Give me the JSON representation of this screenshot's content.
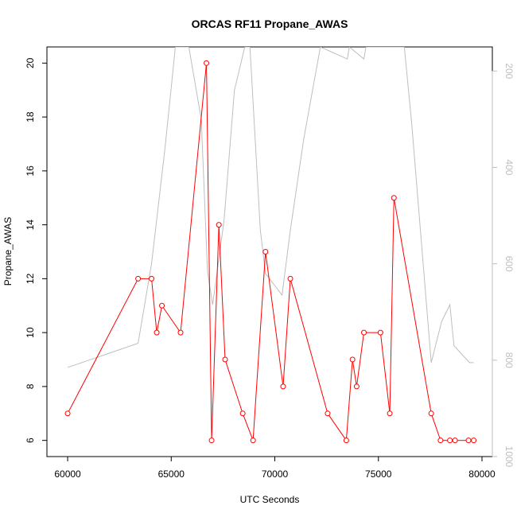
{
  "chart_data": {
    "type": "line",
    "title": "ORCAS RF11 Propane_AWAS",
    "xlabel": "UTC Seconds",
    "ylabel": "Propane_AWAS",
    "xlim": [
      59000,
      80500
    ],
    "ylim": [
      5.4,
      20.6
    ],
    "y2lim": [
      1000,
      150
    ],
    "xticks": [
      60000,
      65000,
      70000,
      75000,
      80000
    ],
    "yticks": [
      6,
      8,
      10,
      12,
      14,
      16,
      18,
      20
    ],
    "y2ticks": [
      200,
      400,
      600,
      800,
      1000
    ],
    "grid": false,
    "series": [
      {
        "axis": "left",
        "color": "#ff0000",
        "marker": "open-circle",
        "x": [
          60000,
          63400,
          64050,
          64300,
          64550,
          65450,
          66700,
          66950,
          67300,
          67600,
          68450,
          68950,
          69550,
          70400,
          70750,
          72550,
          73450,
          73750,
          73950,
          74300,
          75100,
          75550,
          75750,
          77550,
          78000,
          78450,
          78700,
          79350,
          79600
        ],
        "y": [
          7,
          12,
          12,
          10,
          11,
          10,
          20,
          6,
          14,
          9,
          7,
          6,
          13,
          8,
          12,
          7,
          6,
          9,
          8,
          10,
          10,
          7,
          15,
          7,
          6,
          6,
          6,
          6,
          6
        ]
      },
      {
        "axis": "right",
        "color": "#bebebe",
        "marker": "none",
        "x": [
          60000,
          63400,
          64050,
          64700,
          65200,
          65450,
          65850,
          66450,
          66750,
          67000,
          67550,
          68050,
          68550,
          68800,
          69300,
          69550,
          70350,
          70750,
          71400,
          72200,
          73500,
          73600,
          74300,
          74400,
          75100,
          76250,
          76600,
          77550,
          78050,
          78450,
          78650,
          79400,
          79600
        ],
        "y": [
          815,
          765,
          600,
          360,
          150,
          150,
          150,
          300,
          615,
          685,
          510,
          240,
          150,
          150,
          530,
          620,
          665,
          530,
          340,
          150,
          175,
          150,
          175,
          150,
          150,
          150,
          305,
          805,
          720,
          685,
          770,
          805,
          805
        ]
      }
    ]
  }
}
